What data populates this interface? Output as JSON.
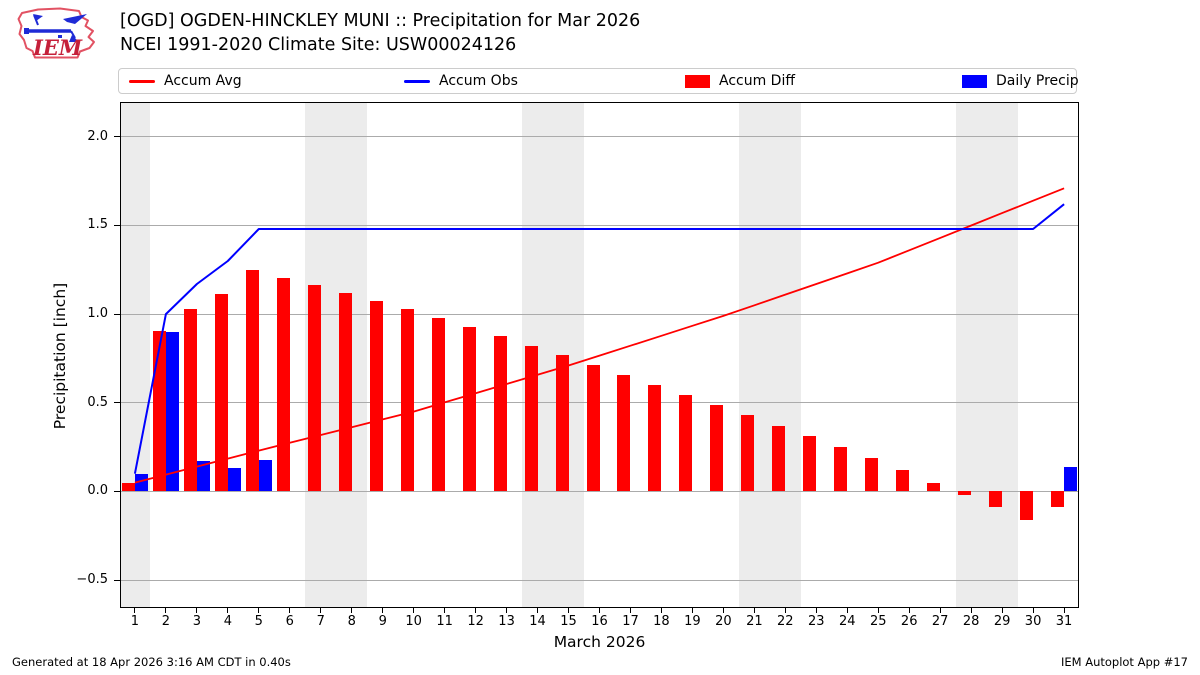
{
  "header": {
    "title": "[OGD] OGDEN-HINCKLEY MUNI :: Precipitation for Mar 2026",
    "subtitle": "NCEI 1991-2020 Climate Site: USW00024126",
    "logo_text": "IEM"
  },
  "legend": [
    {
      "label": "Accum Avg",
      "marker": "line",
      "color": "#ff0000"
    },
    {
      "label": "Accum Obs",
      "marker": "line",
      "color": "#0000ff"
    },
    {
      "label": "Accum Diff",
      "marker": "box",
      "color": "#ff0000"
    },
    {
      "label": "Daily Precip",
      "marker": "box",
      "color": "#0000ff"
    }
  ],
  "y_axis": {
    "label": "Precipitation [inch]",
    "ticks": [
      -0.5,
      0.0,
      0.5,
      1.0,
      1.5,
      2.0
    ]
  },
  "x_axis": {
    "label": "March 2026"
  },
  "footer": {
    "left": "Generated at 18 Apr 2026 3:16 AM CDT in 0.40s",
    "right": "IEM Autoplot App #17"
  },
  "colors": {
    "red": "#ff0000",
    "blue": "#0000ff",
    "weekend_band": "#ececec",
    "gridline": "#ababab",
    "plot_border": "#000000",
    "legend_border": "#cccccc"
  },
  "chart_data": {
    "type": "bar+line",
    "title": "[OGD] OGDEN-HINCKLEY MUNI :: Precipitation for Mar 2026",
    "subtitle": "NCEI 1991-2020 Climate Site: USW00024126",
    "xlabel": "March 2026",
    "ylabel": "Precipitation [inch]",
    "x": [
      1,
      2,
      3,
      4,
      5,
      6,
      7,
      8,
      9,
      10,
      11,
      12,
      13,
      14,
      15,
      16,
      17,
      18,
      19,
      20,
      21,
      22,
      23,
      24,
      25,
      26,
      27,
      28,
      29,
      30,
      31
    ],
    "xlim": [
      0.55,
      31.45
    ],
    "ylim": [
      -0.652,
      2.191
    ],
    "grid": true,
    "legend_position": "top",
    "weekend_bands_days": [
      [
        0.55,
        1.5
      ],
      [
        6.5,
        8.5
      ],
      [
        13.5,
        15.5
      ],
      [
        20.5,
        22.5
      ],
      [
        27.5,
        29.5
      ]
    ],
    "series": [
      {
        "name": "Accum Avg",
        "type": "line",
        "color": "#ff0000",
        "values": [
          0.05,
          0.095,
          0.14,
          0.185,
          0.23,
          0.274,
          0.318,
          0.362,
          0.406,
          0.45,
          0.502,
          0.554,
          0.606,
          0.658,
          0.71,
          0.766,
          0.822,
          0.878,
          0.934,
          0.99,
          1.05,
          1.11,
          1.17,
          1.23,
          1.29,
          1.36,
          1.43,
          1.5,
          1.57,
          1.64,
          1.71
        ]
      },
      {
        "name": "Accum Obs",
        "type": "line",
        "color": "#0000ff",
        "values": [
          0.1,
          1.0,
          1.17,
          1.3,
          1.48,
          1.48,
          1.48,
          1.48,
          1.48,
          1.48,
          1.48,
          1.48,
          1.48,
          1.48,
          1.48,
          1.48,
          1.48,
          1.48,
          1.48,
          1.48,
          1.48,
          1.48,
          1.48,
          1.48,
          1.48,
          1.48,
          1.48,
          1.48,
          1.48,
          1.48,
          1.62
        ]
      },
      {
        "name": "Accum Diff",
        "type": "bar",
        "side": "left",
        "color": "#ff0000",
        "values": [
          0.05,
          0.905,
          1.03,
          1.115,
          1.25,
          1.206,
          1.162,
          1.118,
          1.074,
          1.03,
          0.978,
          0.926,
          0.874,
          0.822,
          0.77,
          0.714,
          0.658,
          0.602,
          0.546,
          0.49,
          0.43,
          0.37,
          0.31,
          0.25,
          0.19,
          0.12,
          0.05,
          -0.02,
          -0.09,
          -0.16,
          -0.09
        ]
      },
      {
        "name": "Daily Precip",
        "type": "bar",
        "side": "right",
        "color": "#0000ff",
        "values": [
          0.1,
          0.9,
          0.17,
          0.13,
          0.18,
          0,
          0,
          0,
          0,
          0,
          0,
          0,
          0,
          0,
          0,
          0,
          0,
          0,
          0,
          0,
          0,
          0,
          0,
          0,
          0,
          0,
          0,
          0,
          0,
          0,
          0.14
        ]
      }
    ]
  }
}
